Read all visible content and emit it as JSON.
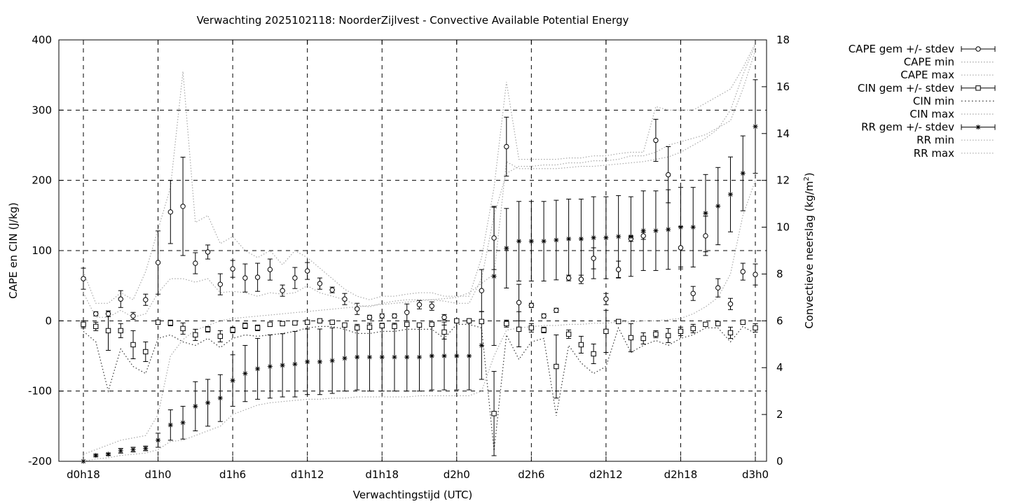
{
  "chart_data": {
    "type": "line",
    "title": "Verwachting 2025102118: NoorderZijlvest - Convective Available Potential Energy",
    "xlabel": "Verwachtingstijd (UTC)",
    "ylabel": "CAPE en CIN (J/kg)",
    "y2label_main": "Convectieve neerslag (kg/m",
    "y2label_sup": "2",
    "y2label_end": ")",
    "xlim": [
      0,
      54
    ],
    "ylim": [
      -200,
      400
    ],
    "y2lim": [
      0,
      18
    ],
    "grid": true,
    "legend_position": "outside-right",
    "xticks": [
      {
        "x": 0,
        "label": "d0h18"
      },
      {
        "x": 6,
        "label": "d1h0"
      },
      {
        "x": 12,
        "label": "d1h6"
      },
      {
        "x": 18,
        "label": "d1h12"
      },
      {
        "x": 24,
        "label": "d1h18"
      },
      {
        "x": 30,
        "label": "d2h0"
      },
      {
        "x": 36,
        "label": "d2h6"
      },
      {
        "x": 42,
        "label": "d2h12"
      },
      {
        "x": 48,
        "label": "d2h18"
      },
      {
        "x": 54,
        "label": "d3h0"
      }
    ],
    "yticks": [
      -200,
      -100,
      0,
      100,
      200,
      300,
      400
    ],
    "y2ticks": [
      0,
      2,
      4,
      6,
      8,
      10,
      12,
      14,
      16,
      18
    ],
    "legend": [
      "CAPE gem +/- stdev",
      "CAPE min",
      "CAPE max",
      "CIN gem +/- stdev",
      "CIN min",
      "CIN max",
      "RR gem +/- stdev",
      "RR min",
      "RR max"
    ],
    "cape": {
      "x": [
        0,
        1,
        2,
        3,
        4,
        5,
        6,
        7,
        8,
        9,
        10,
        11,
        12,
        13,
        14,
        15,
        16,
        17,
        18,
        19,
        20,
        21,
        22,
        23,
        24,
        25,
        26,
        27,
        28,
        29,
        30,
        31,
        32,
        33,
        34,
        35,
        36,
        37,
        38,
        39,
        40,
        41,
        42,
        43,
        44,
        45,
        46,
        47,
        48,
        49,
        50,
        51,
        52,
        53,
        54
      ],
      "mean": [
        60,
        10,
        10,
        31,
        7,
        30,
        83,
        155,
        163,
        82,
        98,
        52,
        74,
        61,
        62,
        73,
        43,
        61,
        71,
        53,
        44,
        31,
        17,
        5,
        7,
        7,
        12,
        23,
        21,
        5,
        0,
        0,
        43,
        118,
        248,
        26,
        22,
        7,
        15,
        61,
        59,
        89,
        31,
        73,
        117,
        121,
        257,
        208,
        104,
        39,
        121,
        47,
        24,
        70,
        66
      ],
      "stdev": [
        15,
        3,
        4,
        12,
        5,
        8,
        45,
        45,
        70,
        15,
        10,
        15,
        12,
        20,
        20,
        15,
        8,
        15,
        12,
        8,
        4,
        8,
        8,
        3,
        3,
        3,
        12,
        6,
        6,
        4,
        0,
        0,
        30,
        45,
        42,
        26,
        3,
        3,
        3,
        4,
        6,
        15,
        8,
        12,
        4,
        5,
        30,
        40,
        30,
        10,
        28,
        13,
        8,
        12,
        15
      ],
      "min": [
        40,
        5,
        5,
        15,
        5,
        10,
        40,
        60,
        60,
        55,
        60,
        40,
        42,
        40,
        35,
        40,
        38,
        40,
        50,
        40,
        35,
        30,
        22,
        20,
        25,
        28,
        30,
        30,
        30,
        28,
        25,
        25,
        60,
        150,
        210,
        220,
        220,
        222,
        222,
        225,
        225,
        228,
        228,
        230,
        235,
        235,
        240,
        250,
        255,
        260,
        265,
        275,
        285,
        330,
        385
      ],
      "max": [
        70,
        25,
        25,
        40,
        30,
        70,
        130,
        190,
        355,
        140,
        150,
        110,
        120,
        100,
        90,
        100,
        80,
        100,
        90,
        75,
        60,
        45,
        35,
        30,
        35,
        35,
        38,
        40,
        40,
        35,
        35,
        35,
        90,
        190,
        340,
        230,
        230,
        230,
        230,
        232,
        232,
        235,
        235,
        238,
        240,
        240,
        305,
        300,
        300,
        300,
        310,
        320,
        330,
        360,
        395
      ]
    },
    "cin": {
      "x": [
        0,
        1,
        2,
        3,
        4,
        5,
        6,
        7,
        8,
        9,
        10,
        11,
        12,
        13,
        14,
        15,
        16,
        17,
        18,
        19,
        20,
        21,
        22,
        23,
        24,
        25,
        26,
        27,
        28,
        29,
        30,
        31,
        32,
        33,
        34,
        35,
        36,
        37,
        38,
        39,
        40,
        41,
        42,
        43,
        44,
        45,
        46,
        47,
        48,
        49,
        50,
        51,
        52,
        53,
        54
      ],
      "mean": [
        -5,
        -8,
        -14,
        -14,
        -34,
        -44,
        -2,
        -3,
        -11,
        -20,
        -12,
        -22,
        -13,
        -7,
        -10,
        -5,
        -4,
        -3,
        -2,
        0,
        -2,
        -6,
        -10,
        -9,
        -7,
        -8,
        -5,
        -6,
        -5,
        -16,
        0,
        0,
        -1,
        -132,
        -4,
        -12,
        -10,
        -13,
        -65,
        -19,
        -34,
        -47,
        -15,
        -1,
        -24,
        -25,
        -19,
        -21,
        -15,
        -11,
        -5,
        -4,
        -17,
        -2,
        -10
      ],
      "stdev": [
        5,
        6,
        28,
        10,
        20,
        14,
        3,
        4,
        8,
        8,
        4,
        8,
        4,
        4,
        4,
        2,
        2,
        2,
        2,
        1,
        2,
        2,
        3,
        3,
        3,
        3,
        2,
        2,
        2,
        10,
        0,
        0,
        1,
        60,
        5,
        25,
        6,
        4,
        45,
        6,
        12,
        14,
        30,
        2,
        20,
        8,
        5,
        10,
        6,
        6,
        2,
        2,
        8,
        1,
        6
      ],
      "min": [
        -15,
        -30,
        -100,
        -40,
        -65,
        -75,
        -25,
        -20,
        -30,
        -35,
        -25,
        -38,
        -25,
        -20,
        -22,
        -20,
        -18,
        -15,
        -10,
        -8,
        -8,
        -12,
        -18,
        -18,
        -15,
        -15,
        -12,
        -12,
        -12,
        -25,
        -5,
        -5,
        -10,
        -185,
        -20,
        -55,
        -30,
        -25,
        -135,
        -35,
        -60,
        -75,
        -65,
        -10,
        -45,
        -35,
        -28,
        -35,
        -25,
        -20,
        -10,
        -10,
        -30,
        -8,
        -18
      ],
      "max": [
        0,
        0,
        0,
        0,
        0,
        0,
        0,
        0,
        0,
        0,
        0,
        0,
        0,
        0,
        0,
        0,
        0,
        0,
        0,
        0,
        0,
        0,
        0,
        0,
        0,
        0,
        0,
        0,
        0,
        0,
        0,
        0,
        0,
        0,
        0,
        0,
        0,
        0,
        0,
        0,
        0,
        0,
        0,
        0,
        0,
        0,
        0,
        0,
        0,
        0,
        0,
        0,
        0,
        0,
        0
      ]
    },
    "rr": {
      "x": [
        0,
        1,
        2,
        3,
        4,
        5,
        6,
        7,
        8,
        9,
        10,
        11,
        12,
        13,
        14,
        15,
        16,
        17,
        18,
        19,
        20,
        21,
        22,
        23,
        24,
        25,
        26,
        27,
        28,
        29,
        30,
        31,
        32,
        33,
        34,
        35,
        36,
        37,
        38,
        39,
        40,
        41,
        42,
        43,
        44,
        45,
        46,
        47,
        48,
        49,
        50,
        51,
        52,
        53,
        54
      ],
      "mean": [
        0,
        0.25,
        0.3,
        0.45,
        0.5,
        0.55,
        0.9,
        1.55,
        1.65,
        2.35,
        2.5,
        2.7,
        3.45,
        3.75,
        3.95,
        4.05,
        4.1,
        4.15,
        4.25,
        4.25,
        4.3,
        4.4,
        4.45,
        4.45,
        4.45,
        4.45,
        4.45,
        4.45,
        4.5,
        4.5,
        4.5,
        4.5,
        4.95,
        7.9,
        9.1,
        9.4,
        9.4,
        9.4,
        9.45,
        9.5,
        9.5,
        9.55,
        9.55,
        9.6,
        9.6,
        9.85,
        9.85,
        9.9,
        10.0,
        10.0,
        10.6,
        10.9,
        11.4,
        12.3,
        14.3
      ],
      "stdev": [
        0,
        0.05,
        0.05,
        0.1,
        0.1,
        0.1,
        0.3,
        0.65,
        0.7,
        1.05,
        1.0,
        1.0,
        1.1,
        1.2,
        1.3,
        1.35,
        1.35,
        1.4,
        1.4,
        1.4,
        1.4,
        1.4,
        1.4,
        1.45,
        1.45,
        1.45,
        1.45,
        1.45,
        1.45,
        1.45,
        1.45,
        1.45,
        1.45,
        2.95,
        1.7,
        1.7,
        1.7,
        1.7,
        1.7,
        1.7,
        1.7,
        1.75,
        1.75,
        1.75,
        1.7,
        1.7,
        1.7,
        1.7,
        1.7,
        1.7,
        1.65,
        1.65,
        1.6,
        1.6,
        2.0
      ],
      "min": [
        0,
        0.1,
        0.15,
        0.25,
        0.3,
        0.35,
        0.5,
        0.85,
        0.9,
        1.1,
        1.3,
        1.5,
        2.0,
        2.2,
        2.4,
        2.5,
        2.55,
        2.6,
        2.65,
        2.65,
        2.7,
        2.7,
        2.75,
        2.75,
        2.75,
        2.75,
        2.75,
        2.8,
        2.8,
        2.8,
        2.8,
        2.8,
        3.0,
        4.5,
        5.6,
        5.7,
        5.75,
        5.8,
        5.8,
        5.85,
        5.85,
        5.9,
        5.9,
        5.95,
        5.95,
        6.0,
        6.0,
        6.05,
        6.1,
        6.3,
        6.6,
        7.0,
        8.0,
        10.5,
        12.0
      ],
      "max": [
        0.3,
        0.5,
        0.7,
        0.9,
        1.0,
        1.1,
        2.0,
        4.5,
        5.2,
        5.6,
        5.8,
        6.0,
        6.1,
        6.15,
        6.2,
        6.25,
        6.3,
        6.35,
        6.4,
        6.45,
        6.5,
        6.55,
        6.6,
        6.65,
        6.7,
        6.75,
        6.8,
        6.85,
        6.9,
        6.95,
        7.0,
        7.2,
        7.6,
        8.0,
        12.8,
        12.5,
        12.5,
        12.5,
        12.5,
        12.55,
        12.6,
        12.6,
        12.65,
        12.7,
        12.75,
        12.8,
        12.9,
        13.0,
        13.2,
        13.5,
        13.8,
        14.2,
        15.0,
        16.5,
        17.8
      ]
    }
  }
}
